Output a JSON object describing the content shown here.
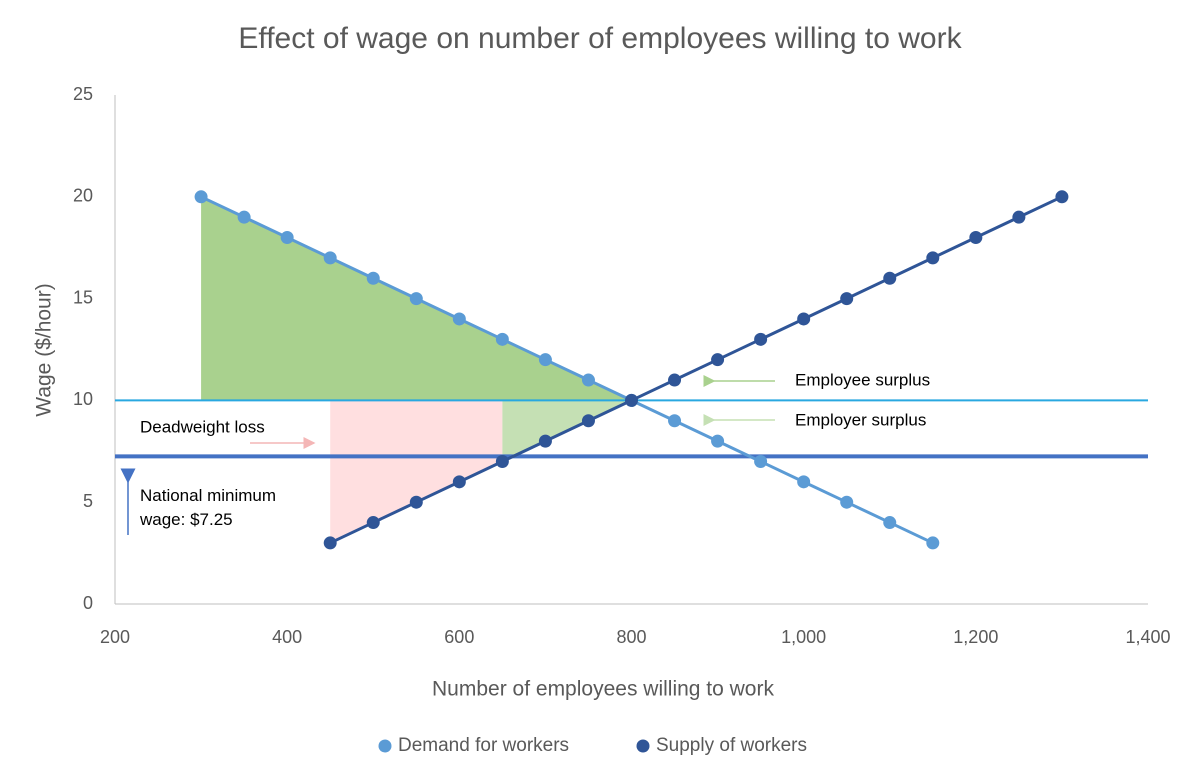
{
  "chart_data": {
    "type": "scatter",
    "title": "Effect of wage on number of employees willing to work",
    "x_label": "Number of employees willing to work",
    "y_label": "Wage ($/hour)",
    "xlim": [
      200,
      1400
    ],
    "xticks": [
      200,
      400,
      600,
      800,
      {
        "value": 1000,
        "label": "1,000"
      },
      {
        "value": 1200,
        "label": "1,200"
      },
      {
        "value": 1400,
        "label": "1,400"
      }
    ],
    "ylim": [
      0,
      25
    ],
    "yticks": [
      0,
      5,
      10,
      15,
      20,
      25
    ],
    "grid": false,
    "legend": "bottom",
    "series": [
      {
        "name": "Demand for workers",
        "color": "#5b9bd5",
        "x": [
          300,
          350,
          400,
          450,
          500,
          550,
          600,
          650,
          700,
          750,
          800,
          850,
          900,
          950,
          1000,
          1050,
          1100,
          1150
        ],
        "values": [
          20,
          19,
          18,
          17,
          16,
          15,
          14,
          13,
          12,
          11,
          10,
          9,
          8,
          7,
          6,
          5,
          4,
          3
        ]
      },
      {
        "name": "Supply of workers",
        "color": "#2f5597",
        "x": [
          450,
          500,
          550,
          600,
          650,
          700,
          750,
          800,
          850,
          900,
          950,
          1000,
          1050,
          1100,
          1150,
          1200,
          1250,
          1300
        ],
        "values": [
          3,
          4,
          5,
          6,
          7,
          8,
          9,
          10,
          11,
          12,
          13,
          14,
          15,
          16,
          17,
          18,
          19,
          20
        ]
      }
    ],
    "reference_lines": [
      {
        "value": 10,
        "color": "#29a8e0"
      },
      {
        "value": 7.25,
        "color": "#4472c4"
      }
    ],
    "annotations": {
      "employee_surplus": "Employee surplus",
      "employer_surplus": "Employer surplus",
      "deadweight_loss": "Deadweight loss",
      "minimum_wage": "National minimum wage: $7.25"
    }
  }
}
